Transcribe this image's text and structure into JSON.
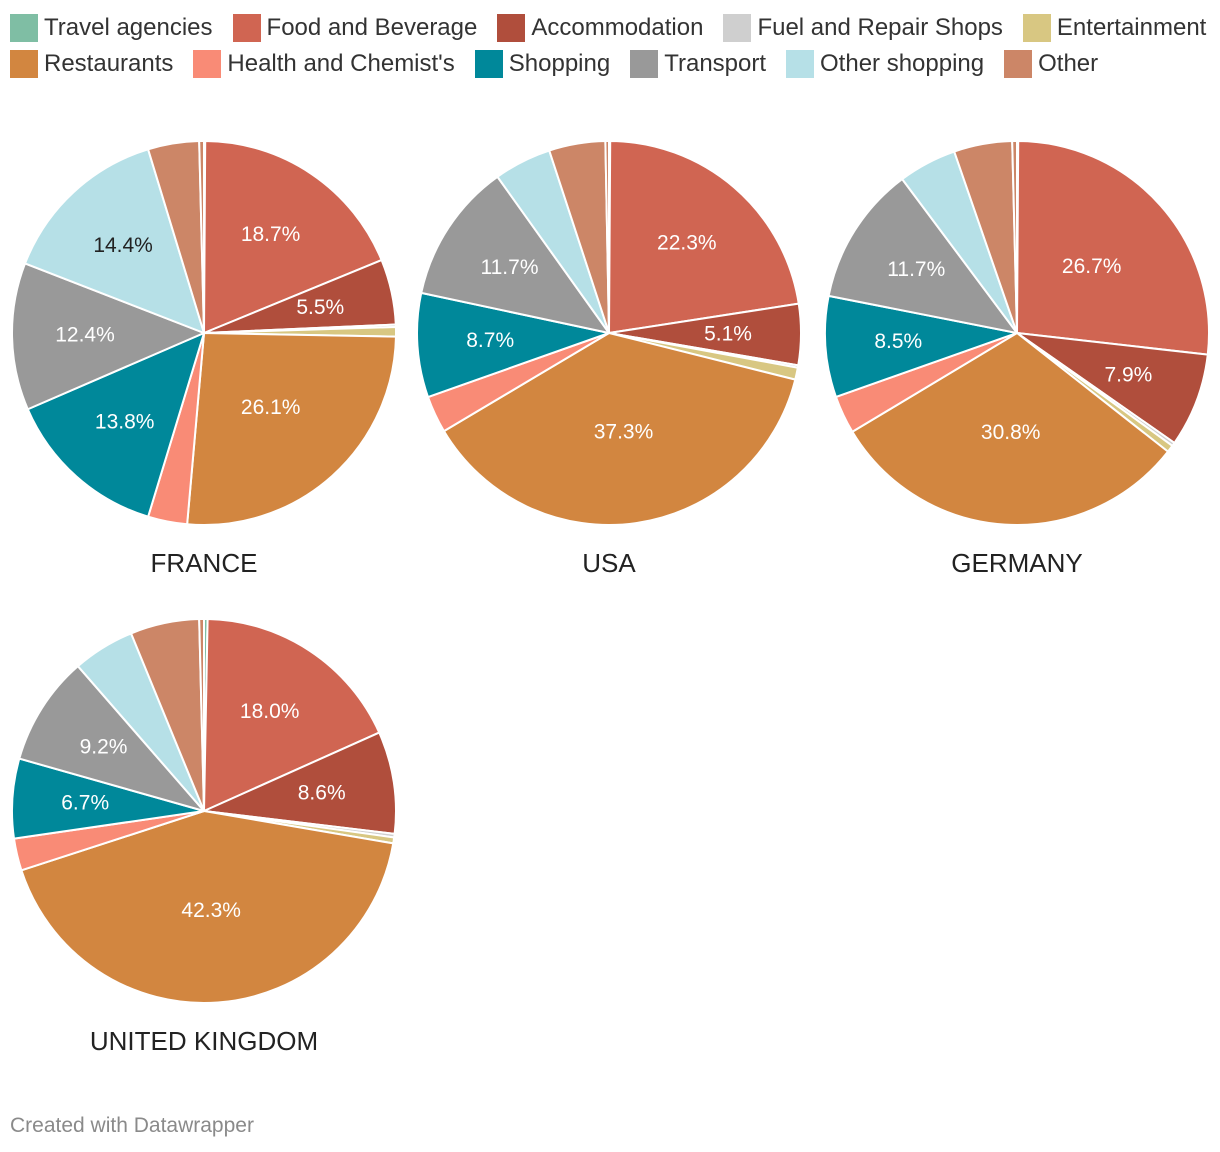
{
  "legend": [
    [
      {
        "label": "Travel agencies",
        "color": "#7fbea4"
      },
      {
        "label": "Food and Beverage",
        "color": "#d06552"
      },
      {
        "label": "Accommodation",
        "color": "#b04e3c"
      },
      {
        "label": "Fuel and Repair Shops",
        "color": "#cfcfcf"
      },
      {
        "label": "Entertainment",
        "color": "#d8c782"
      }
    ],
    [
      {
        "label": "Restaurants",
        "color": "#d28640"
      },
      {
        "label": "Health and Chemist's",
        "color": "#f98b76"
      },
      {
        "label": "Shopping",
        "color": "#00889a"
      },
      {
        "label": "Transport",
        "color": "#999999"
      },
      {
        "label": "Other shopping",
        "color": "#b6e0e7"
      },
      {
        "label": "Other",
        "color": "#cc8667"
      }
    ]
  ],
  "chart_data": [
    {
      "type": "pie",
      "title": "FRANCE",
      "slices": [
        {
          "category": "Travel agencies",
          "value": 0.1
        },
        {
          "category": "Food and Beverage",
          "value": 18.7,
          "label": "18.7%"
        },
        {
          "category": "Accommodation",
          "value": 5.5,
          "label": "5.5%"
        },
        {
          "category": "Fuel and Repair Shops",
          "value": 0.2
        },
        {
          "category": "Entertainment",
          "value": 0.8
        },
        {
          "category": "Restaurants",
          "value": 26.1,
          "label": "26.1%"
        },
        {
          "category": "Health and Chemist's",
          "value": 3.3
        },
        {
          "category": "Shopping",
          "value": 13.8,
          "label": "13.8%"
        },
        {
          "category": "Transport",
          "value": 12.4,
          "label": "12.4%"
        },
        {
          "category": "Other shopping",
          "value": 14.4,
          "label": "14.4%"
        },
        {
          "category": "Other",
          "value": 4.3
        },
        {
          "category": "Other",
          "value": 0.4
        }
      ]
    },
    {
      "type": "pie",
      "title": "USA",
      "slices": [
        {
          "category": "Travel agencies",
          "value": 0.1
        },
        {
          "category": "Food and Beverage",
          "value": 22.3,
          "label": "22.3%"
        },
        {
          "category": "Accommodation",
          "value": 5.1,
          "label": "5.1%"
        },
        {
          "category": "Fuel and Repair Shops",
          "value": 0.2
        },
        {
          "category": "Entertainment",
          "value": 1.0
        },
        {
          "category": "Restaurants",
          "value": 37.3,
          "label": "37.3%"
        },
        {
          "category": "Health and Chemist's",
          "value": 3.1
        },
        {
          "category": "Shopping",
          "value": 8.7,
          "label": "8.7%"
        },
        {
          "category": "Transport",
          "value": 11.7,
          "label": "11.7%"
        },
        {
          "category": "Other shopping",
          "value": 4.8
        },
        {
          "category": "Other",
          "value": 4.7
        },
        {
          "category": "Other",
          "value": 0.3
        }
      ]
    },
    {
      "type": "pie",
      "title": "GERMANY",
      "slices": [
        {
          "category": "Travel agencies",
          "value": 0.1
        },
        {
          "category": "Food and Beverage",
          "value": 26.7,
          "label": "26.7%"
        },
        {
          "category": "Accommodation",
          "value": 7.9,
          "label": "7.9%"
        },
        {
          "category": "Fuel and Repair Shops",
          "value": 0.3
        },
        {
          "category": "Entertainment",
          "value": 0.6
        },
        {
          "category": "Restaurants",
          "value": 30.8,
          "label": "30.8%"
        },
        {
          "category": "Health and Chemist's",
          "value": 3.2
        },
        {
          "category": "Shopping",
          "value": 8.5,
          "label": "8.5%"
        },
        {
          "category": "Transport",
          "value": 11.7,
          "label": "11.7%"
        },
        {
          "category": "Other shopping",
          "value": 4.9
        },
        {
          "category": "Other",
          "value": 4.9
        },
        {
          "category": "Other",
          "value": 0.4
        }
      ]
    },
    {
      "type": "pie",
      "title": "UNITED KINGDOM",
      "slices": [
        {
          "category": "Travel agencies",
          "value": 0.3
        },
        {
          "category": "Food and Beverage",
          "value": 18.0,
          "label": "18.0%"
        },
        {
          "category": "Accommodation",
          "value": 8.6,
          "label": "8.6%"
        },
        {
          "category": "Fuel and Repair Shops",
          "value": 0.3
        },
        {
          "category": "Entertainment",
          "value": 0.5
        },
        {
          "category": "Restaurants",
          "value": 42.3,
          "label": "42.3%"
        },
        {
          "category": "Health and Chemist's",
          "value": 2.7
        },
        {
          "category": "Shopping",
          "value": 6.7,
          "label": "6.7%"
        },
        {
          "category": "Transport",
          "value": 9.2,
          "label": "9.2%"
        },
        {
          "category": "Other shopping",
          "value": 5.2
        },
        {
          "category": "Other",
          "value": 5.8
        },
        {
          "category": "Other",
          "value": 0.4
        }
      ]
    }
  ],
  "credit": "Created with Datawrapper"
}
